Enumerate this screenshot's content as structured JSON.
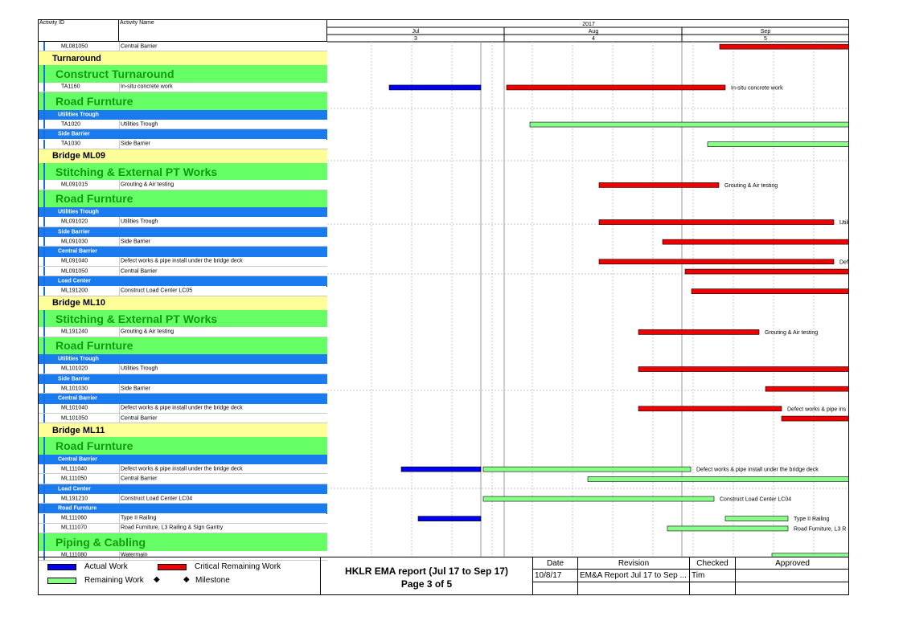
{
  "columns": {
    "activity_id": "Activity ID",
    "activity_name": "Activity Name"
  },
  "timeline": {
    "year": "2017",
    "months": [
      "Jul",
      "Aug",
      "Sep"
    ],
    "month_numbers": [
      "3",
      "4",
      "5"
    ]
  },
  "rows": [
    {
      "type": "activity",
      "id": "ML081050",
      "name": "Central Barrier"
    },
    {
      "type": "yellow",
      "title": "Turnaround"
    },
    {
      "type": "green",
      "title": "Construct Turnaround"
    },
    {
      "type": "activity",
      "id": "TA1160",
      "name": "In-situ concrete work"
    },
    {
      "type": "green",
      "title": "Road Furnture"
    },
    {
      "type": "blue",
      "title": "Utilities Trough"
    },
    {
      "type": "activity",
      "id": "TA1020",
      "name": "Utilities Trough"
    },
    {
      "type": "blue",
      "title": "Side Barrier"
    },
    {
      "type": "activity",
      "id": "TA1030",
      "name": "Side Barrier"
    },
    {
      "type": "yellow",
      "title": "Bridge ML09"
    },
    {
      "type": "green",
      "title": "Stitching & External PT Works"
    },
    {
      "type": "activity",
      "id": "ML091015",
      "name": "Grouting & Air testing"
    },
    {
      "type": "green",
      "title": "Road Furnture"
    },
    {
      "type": "blue",
      "title": "Utilities Trough"
    },
    {
      "type": "activity",
      "id": "ML091020",
      "name": "Utilities Trough"
    },
    {
      "type": "blue",
      "title": "Side Barrier"
    },
    {
      "type": "activity",
      "id": "ML091030",
      "name": "Side Barrier"
    },
    {
      "type": "blue",
      "title": "Central Barrier"
    },
    {
      "type": "activity",
      "id": "ML091040",
      "name": "Defect works & pipe install under the bridge deck"
    },
    {
      "type": "activity",
      "id": "ML091050",
      "name": "Central Barrier"
    },
    {
      "type": "blue",
      "title": "Load Center"
    },
    {
      "type": "activity",
      "id": "ML191200",
      "name": "Construct Load Center LC05"
    },
    {
      "type": "yellow",
      "title": "Bridge ML10"
    },
    {
      "type": "green",
      "title": "Stitching & External PT Works"
    },
    {
      "type": "activity",
      "id": "ML191240",
      "name": "Grouting & Air testing"
    },
    {
      "type": "green",
      "title": "Road Furnture"
    },
    {
      "type": "blue",
      "title": "Utilities Trough"
    },
    {
      "type": "activity",
      "id": "ML101020",
      "name": "Utilities Trough"
    },
    {
      "type": "blue",
      "title": "Side Barrier"
    },
    {
      "type": "activity",
      "id": "ML101030",
      "name": "Side Barrier"
    },
    {
      "type": "blue",
      "title": "Central Barrier"
    },
    {
      "type": "activity",
      "id": "ML101040",
      "name": "Defect works & pipe install under the bridge deck"
    },
    {
      "type": "activity",
      "id": "ML101050",
      "name": "Central Barrier"
    },
    {
      "type": "yellow",
      "title": "Bridge ML11"
    },
    {
      "type": "green",
      "title": "Road Furnture"
    },
    {
      "type": "blue",
      "title": "Central Barrier"
    },
    {
      "type": "activity",
      "id": "ML111040",
      "name": "Defect works & pipe install under the bridge deck"
    },
    {
      "type": "activity",
      "id": "ML111050",
      "name": "Central Barrier"
    },
    {
      "type": "blue",
      "title": "Load Center"
    },
    {
      "type": "activity",
      "id": "ML191210",
      "name": "Construct Load Center LC04"
    },
    {
      "type": "blue",
      "title": "Road Furnture"
    },
    {
      "type": "activity",
      "id": "ML111060",
      "name": "Type II Railing"
    },
    {
      "type": "activity",
      "id": "ML111070",
      "name": "Road Furniture, L3 Railing & Sign Gantry"
    },
    {
      "type": "green",
      "title": "Piping & Cabling"
    },
    {
      "type": "activity",
      "id": "ML111080",
      "name": "Watermain"
    }
  ],
  "bar_labels": [
    {
      "row": 3,
      "text": "In-situ concrete work"
    },
    {
      "row": 11,
      "text": "Grouting & Air testing"
    },
    {
      "row": 14,
      "text": "Utili"
    },
    {
      "row": 18,
      "text": "Defe"
    },
    {
      "row": 24,
      "text": "Grouting & Air testing"
    },
    {
      "row": 31,
      "text": "Defect works & pipe ins"
    },
    {
      "row": 36,
      "text": "Defect works & pipe install under the bridge deck"
    },
    {
      "row": 39,
      "text": "Construct Load Center LC04"
    },
    {
      "row": 41,
      "text": "Type II Railing"
    },
    {
      "row": 42,
      "text": "Road Furniture, L3 R"
    }
  ],
  "legend": {
    "actual": "Actual Work",
    "critical": "Critical Remaining Work",
    "remaining": "Remaining Work",
    "milestone": "Milestone"
  },
  "report": {
    "title": "HKLR EMA report (Jul 17 to Sep 17)",
    "page": "Page 3 of 5"
  },
  "revision_table": {
    "headers": [
      "Date",
      "Revision",
      "Checked",
      "Approved"
    ],
    "row": [
      "10/8/17",
      "EM&A Report Jul 17 to Sep ...",
      "Tim",
      ""
    ]
  },
  "colors": {
    "actual": "#0000ee",
    "critical": "#ee0000",
    "remaining": "#88ff88",
    "group_yellow": "#ffff99",
    "group_green": "#66ff66",
    "group_blue": "#1a7af0"
  }
}
